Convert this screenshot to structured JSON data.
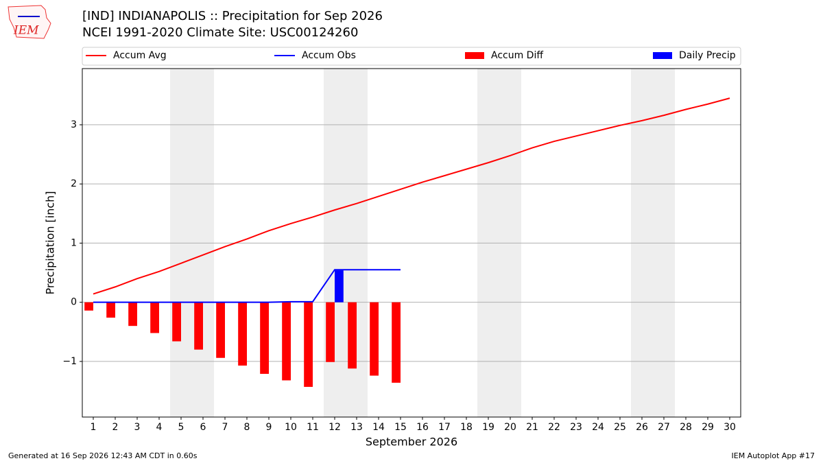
{
  "chart_data": {
    "type": "bar_line",
    "title": "[IND] INDIANAPOLIS :: Precipitation for Sep 2026",
    "subtitle": "NCEI 1991-2020 Climate Site: USC00124260",
    "logo": "IEM",
    "xlabel": "September 2026",
    "ylabel": "Precipitation [inch]",
    "footer_left": "Generated at 16 Sep 2026 12:43 AM CDT in 0.60s",
    "footer_right": "IEM Autoplot App #17",
    "x": [
      1,
      2,
      3,
      4,
      5,
      6,
      7,
      8,
      9,
      10,
      11,
      12,
      13,
      14,
      15,
      16,
      17,
      18,
      19,
      20,
      21,
      22,
      23,
      24,
      25,
      26,
      27,
      28,
      29,
      30
    ],
    "series": [
      {
        "name": "Accum Avg",
        "kind": "line",
        "color": "#ff0000",
        "values": [
          0.14,
          0.26,
          0.4,
          0.52,
          0.66,
          0.8,
          0.94,
          1.07,
          1.21,
          1.33,
          1.44,
          1.56,
          1.67,
          1.79,
          1.91,
          2.03,
          2.14,
          2.25,
          2.36,
          2.48,
          2.61,
          2.72,
          2.81,
          2.9,
          2.99,
          3.07,
          3.16,
          3.26,
          3.35,
          3.45
        ]
      },
      {
        "name": "Accum Obs",
        "kind": "line",
        "color": "#0000ff",
        "values": [
          0,
          0,
          0,
          0,
          0,
          0,
          0,
          0,
          0,
          0.01,
          0.01,
          0.55,
          0.55,
          0.55,
          0.55,
          null,
          null,
          null,
          null,
          null,
          null,
          null,
          null,
          null,
          null,
          null,
          null,
          null,
          null,
          null
        ]
      },
      {
        "name": "Accum Diff",
        "kind": "bar",
        "color": "#ff0000",
        "side": "left",
        "values": [
          -0.14,
          -0.26,
          -0.4,
          -0.52,
          -0.66,
          -0.8,
          -0.94,
          -1.07,
          -1.21,
          -1.32,
          -1.43,
          -1.01,
          -1.12,
          -1.24,
          -1.36,
          null,
          null,
          null,
          null,
          null,
          null,
          null,
          null,
          null,
          null,
          null,
          null,
          null,
          null,
          null
        ]
      },
      {
        "name": "Daily Precip",
        "kind": "bar",
        "color": "#0000ff",
        "side": "right",
        "values": [
          0,
          0,
          0,
          0,
          0,
          0,
          0,
          0,
          0,
          0.01,
          0,
          0.54,
          0,
          0,
          0,
          null,
          null,
          null,
          null,
          null,
          null,
          null,
          null,
          null,
          null,
          null,
          null,
          null,
          null,
          null
        ]
      }
    ],
    "shaded_days": [
      [
        5,
        6
      ],
      [
        12,
        13
      ],
      [
        19,
        20
      ],
      [
        26,
        27
      ]
    ],
    "shade_color": "#eeeeee",
    "xlim": [
      0.5,
      30.5
    ],
    "xticks": [
      1,
      2,
      3,
      4,
      5,
      6,
      7,
      8,
      9,
      10,
      11,
      12,
      13,
      14,
      15,
      16,
      17,
      18,
      19,
      20,
      21,
      22,
      23,
      24,
      25,
      26,
      27,
      28,
      29,
      30
    ],
    "ylim": [
      -1.94,
      3.95
    ],
    "yticks": [
      {
        "value": -1,
        "label": "−1"
      },
      0,
      1,
      2,
      3
    ],
    "grid": "y"
  }
}
